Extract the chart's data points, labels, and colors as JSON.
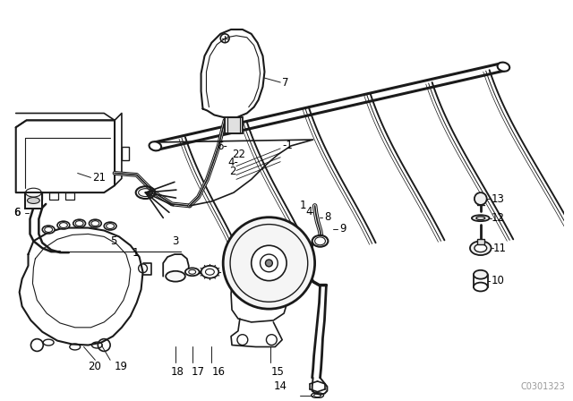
{
  "background_color": "#ffffff",
  "watermark": "C0301323",
  "line_color": "#1a1a1a",
  "label_color": "#000000",
  "label_fontsize": 8.5,
  "fig_w": 6.4,
  "fig_h": 4.48,
  "dpi": 100
}
